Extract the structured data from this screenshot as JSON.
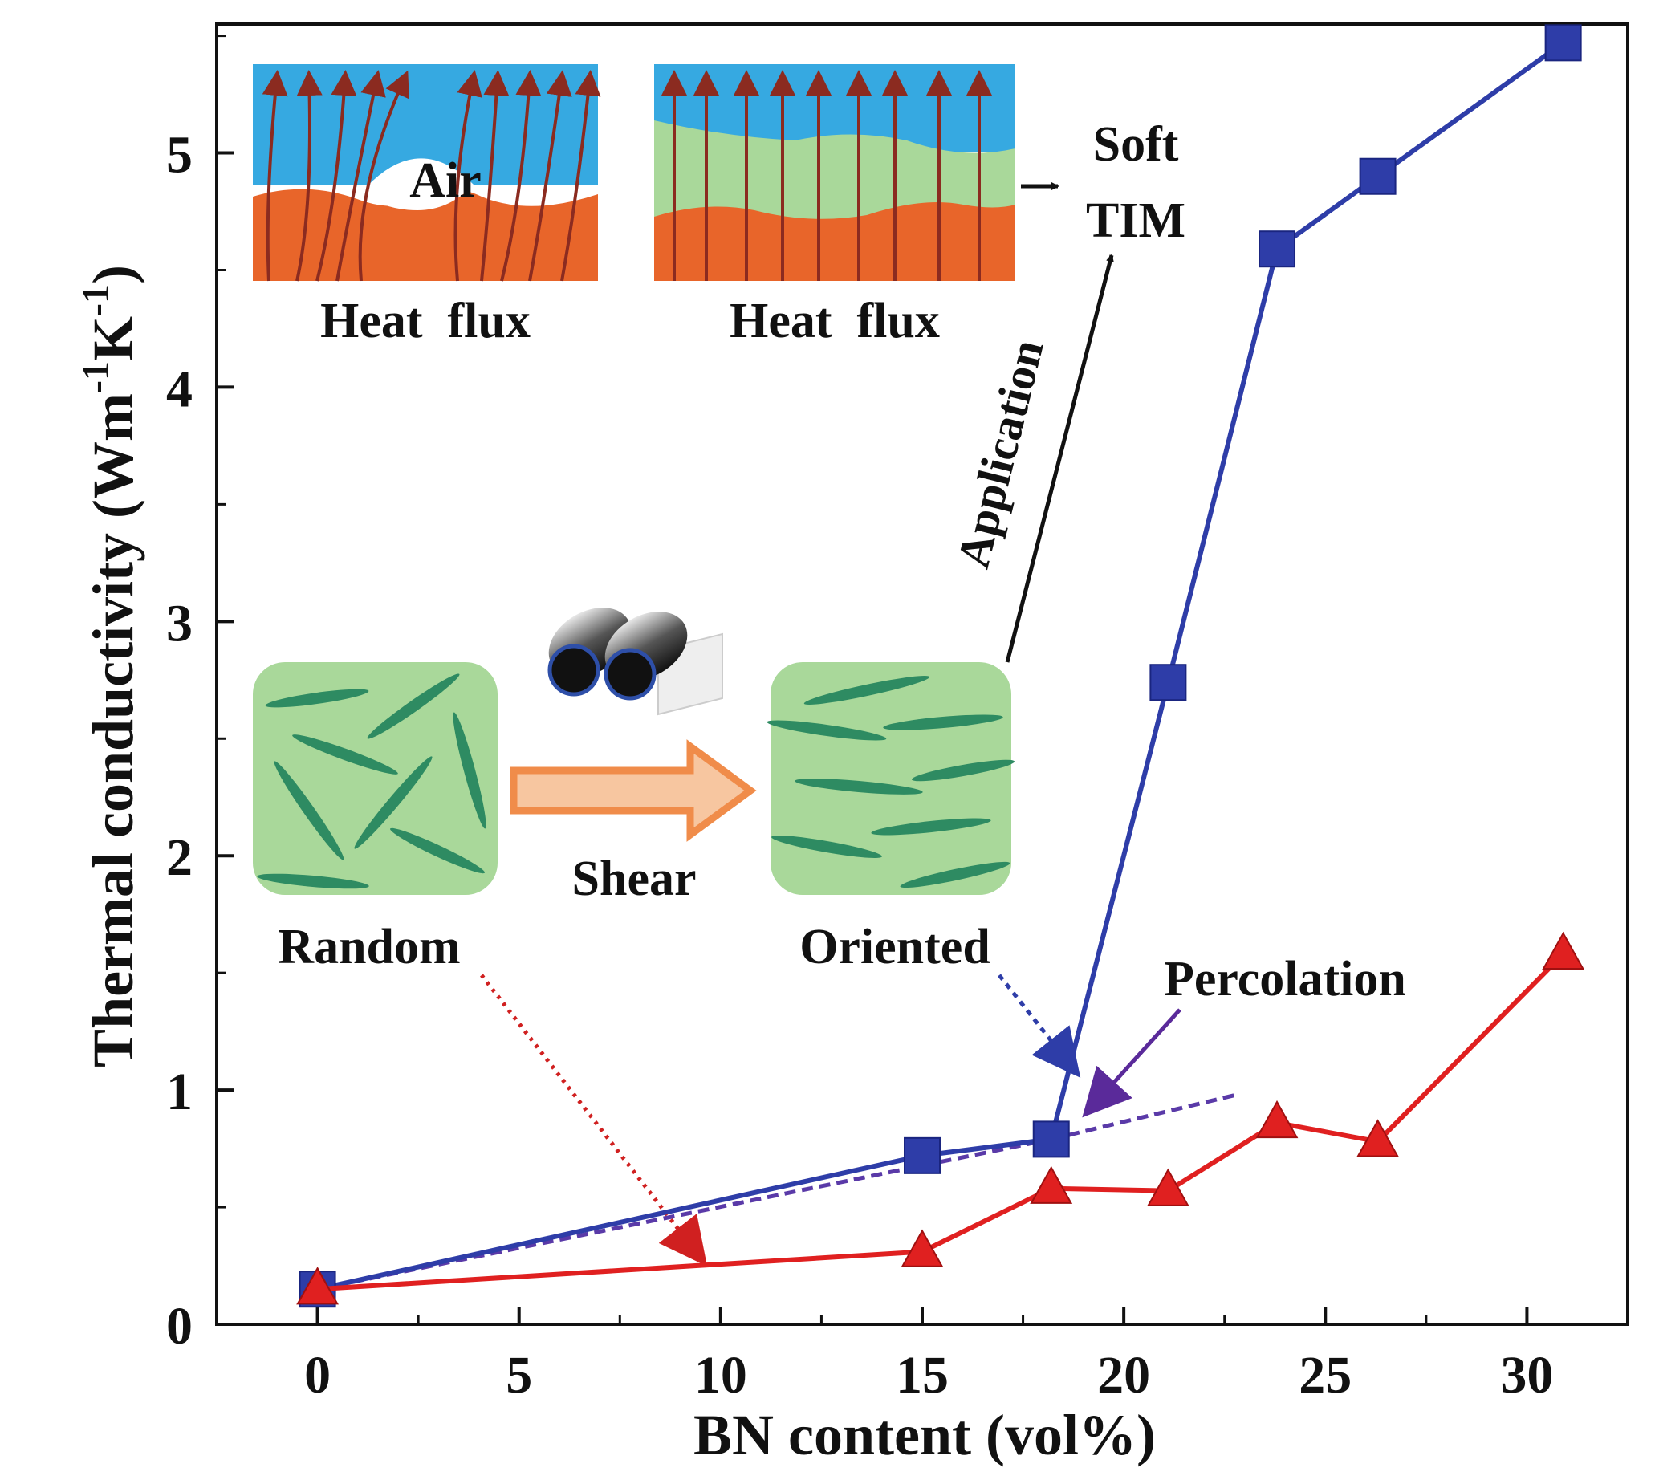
{
  "chart_data": {
    "type": "line",
    "xlabel": "BN content (vol%)",
    "ylabel_main": "Thermal conductivity (Wm",
    "ylabel_sup1": "-1",
    "ylabel_mid": "K",
    "ylabel_sup2": "-1",
    "ylabel_end": ")",
    "xlim": [
      -2.5,
      32.5
    ],
    "ylim": [
      0,
      5.55
    ],
    "x_ticks": [
      0,
      5,
      10,
      15,
      20,
      25,
      30
    ],
    "x_tick_labels": [
      "0",
      "5",
      "10",
      "15",
      "20",
      "25",
      "30"
    ],
    "y_ticks": [
      0,
      1,
      2,
      3,
      4,
      5
    ],
    "y_tick_labels": [
      "0",
      "1",
      "2",
      "3",
      "4",
      "5"
    ],
    "grid": false,
    "series": [
      {
        "marker": "square",
        "color": "#2e3da8",
        "x": [
          0,
          15,
          18.2,
          21.1,
          23.8,
          26.3,
          30.9
        ],
        "y": [
          0.15,
          0.72,
          0.79,
          2.74,
          4.59,
          4.9,
          5.47
        ]
      },
      {
        "marker": "triangle",
        "color": "#e02020",
        "x": [
          0,
          15,
          18.2,
          21.1,
          23.8,
          26.3,
          30.9
        ],
        "y": [
          0.15,
          0.31,
          0.58,
          0.57,
          0.86,
          0.78,
          1.58
        ]
      }
    ],
    "annotations": {
      "air": "Air",
      "heat_flux_left": "Heat  flux",
      "heat_flux_right": "Heat  flux",
      "soft": "Soft",
      "tim": "TIM",
      "application": "Application",
      "shear": "Shear",
      "random": "Random",
      "oriented": "Oriented",
      "percolation": "Percolation"
    },
    "colors": {
      "blue_series": "#2e3da8",
      "red_series": "#e02020",
      "water_blue": "#36a9e1",
      "substrate_orange": "#e8652a",
      "tim_green": "#a9d89a",
      "flux_arrow": "#8b2b20",
      "shear_arrow": "#f08c4a",
      "platelet": "#2e8b62"
    }
  }
}
